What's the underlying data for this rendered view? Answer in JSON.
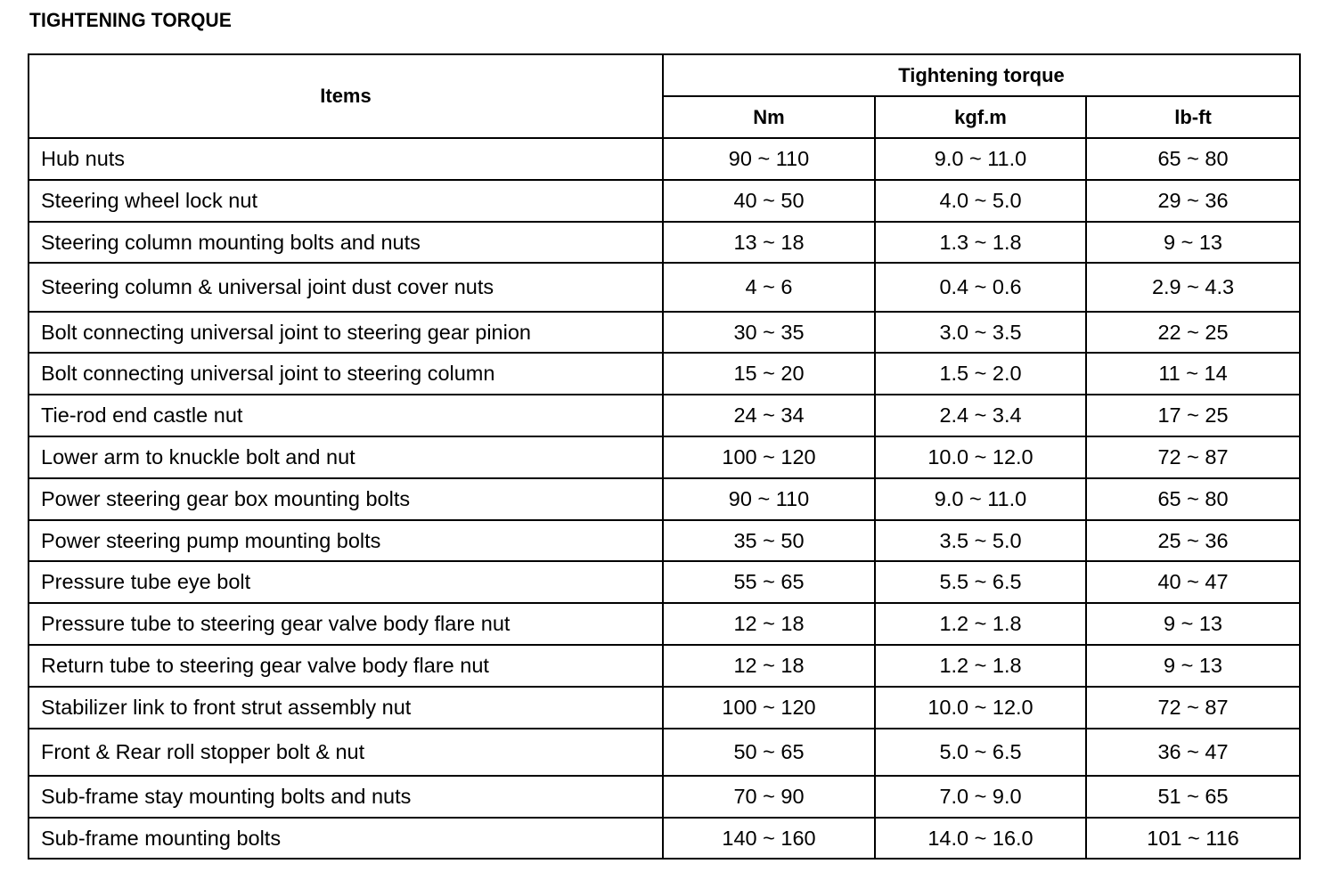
{
  "title": "TIGHTENING TORQUE",
  "table": {
    "headers": {
      "items": "Items",
      "group": "Tightening torque",
      "units": [
        "Nm",
        "kgf.m",
        "lb-ft"
      ]
    },
    "rows": [
      {
        "item": "Hub nuts",
        "nm": "90 ~ 110",
        "kgfm": "9.0 ~ 11.0",
        "lbft": "65 ~ 80"
      },
      {
        "item": "Steering wheel lock nut",
        "nm": "40 ~ 50",
        "kgfm": "4.0 ~ 5.0",
        "lbft": "29 ~ 36"
      },
      {
        "item": "Steering column mounting bolts and nuts",
        "nm": "13 ~ 18",
        "kgfm": "1.3 ~ 1.8",
        "lbft": "9 ~ 13"
      },
      {
        "item": "Steering column & universal joint dust cover nuts",
        "nm": "4 ~ 6",
        "kgfm": "0.4 ~ 0.6",
        "lbft": "2.9 ~ 4.3"
      },
      {
        "item": "Bolt connecting universal joint to steering gear pinion",
        "nm": "30 ~ 35",
        "kgfm": "3.0 ~ 3.5",
        "lbft": "22 ~ 25"
      },
      {
        "item": "Bolt connecting universal joint to steering column",
        "nm": "15 ~ 20",
        "kgfm": "1.5 ~ 2.0",
        "lbft": "11 ~ 14"
      },
      {
        "item": "Tie-rod end castle nut",
        "nm": "24 ~ 34",
        "kgfm": "2.4 ~ 3.4",
        "lbft": "17 ~ 25"
      },
      {
        "item": "Lower arm to knuckle bolt and nut",
        "nm": "100 ~ 120",
        "kgfm": "10.0 ~ 12.0",
        "lbft": "72 ~ 87"
      },
      {
        "item": "Power steering gear box mounting bolts",
        "nm": "90 ~ 110",
        "kgfm": "9.0 ~ 11.0",
        "lbft": "65 ~ 80"
      },
      {
        "item": "Power steering pump mounting bolts",
        "nm": "35 ~ 50",
        "kgfm": "3.5 ~ 5.0",
        "lbft": "25 ~ 36"
      },
      {
        "item": "Pressure tube eye bolt",
        "nm": "55 ~ 65",
        "kgfm": "5.5 ~ 6.5",
        "lbft": "40 ~ 47"
      },
      {
        "item": "Pressure tube to steering gear valve body flare nut",
        "nm": "12 ~ 18",
        "kgfm": "1.2 ~ 1.8",
        "lbft": "9 ~ 13"
      },
      {
        "item": "Return tube to steering gear valve body flare nut",
        "nm": "12 ~ 18",
        "kgfm": "1.2 ~ 1.8",
        "lbft": "9 ~ 13"
      },
      {
        "item": "Stabilizer link to front strut assembly nut",
        "nm": "100 ~ 120",
        "kgfm": "10.0 ~ 12.0",
        "lbft": "72 ~ 87"
      },
      {
        "item": "Front & Rear roll stopper bolt & nut",
        "nm": "50 ~ 65",
        "kgfm": "5.0 ~ 6.5",
        "lbft": "36 ~ 47"
      },
      {
        "item": "Sub-frame stay mounting bolts and nuts",
        "nm": "70 ~ 90",
        "kgfm": "7.0 ~ 9.0",
        "lbft": "51 ~ 65"
      },
      {
        "item": "Sub-frame mounting bolts",
        "nm": "140 ~ 160",
        "kgfm": "14.0 ~ 16.0",
        "lbft": "101 ~ 116"
      }
    ]
  }
}
